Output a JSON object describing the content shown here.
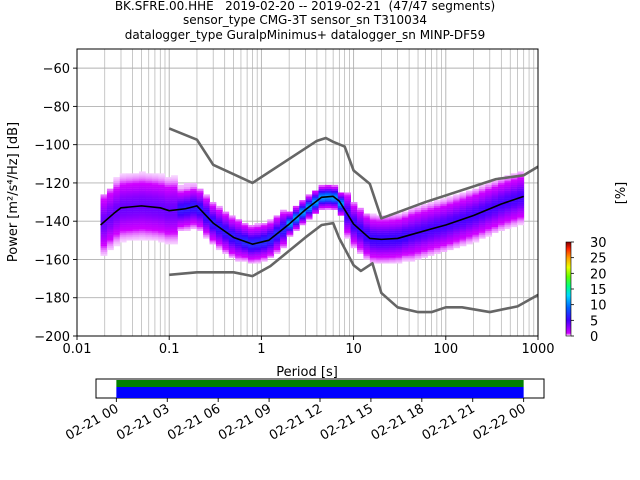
{
  "header": {
    "line1": "BK.SFRE.00.HHE   2019-02-20 -- 2019-02-21  (47/47 segments)",
    "line2": "sensor_type CMG-3T sensor_sn T310034",
    "line3": "datalogger_type GuralpMinimus+ datalogger_sn MINP-DF59"
  },
  "colors": {
    "grid": "#b0b0b0",
    "nlnm_nhnm": "#666666",
    "mode_line": "#000000",
    "coverage_green": "#008000",
    "coverage_blue": "#0000ff"
  },
  "chart_data": [
    {
      "type": "heatmap",
      "title": "",
      "xlabel": "Period [s]",
      "ylabel": "Power [m²/s⁴/Hz] [dB]",
      "xscale": "log",
      "xlim": [
        0.01,
        1000
      ],
      "ylim": [
        -200,
        -50
      ],
      "x_ticks": [
        "0.01",
        "0.1",
        "1",
        "10",
        "100",
        "1000"
      ],
      "x_tick_values": [
        0.01,
        0.1,
        1,
        10,
        100,
        1000
      ],
      "y_ticks": [
        "−60",
        "−80",
        "−100",
        "−120",
        "−140",
        "−160",
        "−180",
        "−200"
      ],
      "y_tick_values": [
        -60,
        -80,
        -100,
        -120,
        -140,
        -160,
        -180,
        -200
      ],
      "grid": true,
      "colorbar": {
        "label": "[%]",
        "range": [
          0,
          30
        ],
        "ticks": [
          "0",
          "5",
          "10",
          "15",
          "20",
          "25",
          "30"
        ],
        "tick_values": [
          0,
          5,
          10,
          15,
          20,
          25,
          30
        ]
      },
      "series": [
        {
          "name": "",
          "role": "NHNM",
          "x": [
            0.1,
            0.2,
            0.3,
            0.8,
            4,
            5,
            6,
            8,
            10,
            15,
            20,
            60,
            350,
            700,
            1000
          ],
          "y": [
            -91.5,
            -97.4,
            -110.5,
            -120,
            -98,
            -96.5,
            -98.5,
            -101,
            -113.5,
            -120.5,
            -138.5,
            -130,
            -118,
            -116,
            -111.5
          ]
        },
        {
          "name": "",
          "role": "NLNM",
          "x": [
            0.1,
            0.2,
            0.5,
            0.8,
            1.25,
            3,
            4.5,
            6,
            7,
            10,
            12,
            16,
            20,
            30,
            50,
            70,
            100,
            150,
            300,
            600,
            1000
          ],
          "y": [
            -168,
            -166.7,
            -166.7,
            -168.7,
            -163.5,
            -148.5,
            -142,
            -141,
            -149,
            -163,
            -166,
            -162,
            -177.5,
            -185,
            -187.5,
            -187.5,
            -185,
            -185,
            -187.5,
            -184.5,
            -178.5
          ]
        },
        {
          "name": "",
          "role": "mode",
          "x": [
            0.018,
            0.025,
            0.03,
            0.05,
            0.08,
            0.1,
            0.15,
            0.2,
            0.3,
            0.5,
            0.8,
            1.2,
            2,
            3,
            4.5,
            6,
            7,
            10,
            15,
            20,
            30,
            50,
            70,
            100,
            200,
            400,
            700
          ],
          "y": [
            -142,
            -136,
            -133,
            -132,
            -133,
            -134.5,
            -133.5,
            -132,
            -141,
            -148.5,
            -152,
            -150,
            -141.5,
            -134,
            -127.5,
            -127,
            -129.5,
            -141.5,
            -149,
            -149.5,
            -149,
            -146,
            -144,
            -142,
            -137,
            -131,
            -127
          ]
        }
      ]
    },
    {
      "type": "bar",
      "title": "",
      "x_ticks": [
        "02-21 00",
        "02-21 03",
        "02-21 06",
        "02-21 09",
        "02-21 12",
        "02-21 15",
        "02-21 18",
        "02-21 21",
        "02-22 00"
      ],
      "x_tick_hours": [
        0,
        3,
        6,
        9,
        12,
        15,
        18,
        21,
        24
      ],
      "xlim_hours": [
        -1.2,
        25.2
      ],
      "coverage": [
        {
          "name": "",
          "start_hour": 0,
          "end_hour": 24,
          "color": "#008000"
        },
        {
          "name": "",
          "start_hour": 0,
          "end_hour": 24,
          "color": "#0000ff"
        }
      ]
    }
  ]
}
